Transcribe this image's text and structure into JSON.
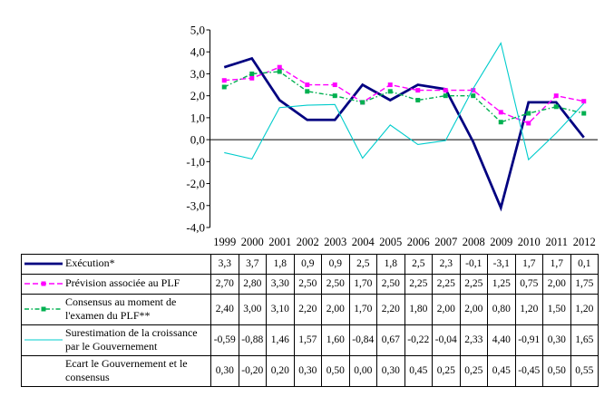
{
  "chart_data": {
    "type": "line",
    "title": "",
    "xlabel": "",
    "ylabel": "",
    "categories": [
      "1999",
      "2000",
      "2001",
      "2002",
      "2003",
      "2004",
      "2005",
      "2006",
      "2007",
      "2008",
      "2009",
      "2010",
      "2011",
      "2012"
    ],
    "ylim": [
      -4,
      5
    ],
    "ytick_step": 1,
    "ytick_labels": [
      "5,0",
      "4,0",
      "3,0",
      "2,0",
      "1,0",
      "0,0",
      "-1,0",
      "-2,0",
      "-3,0",
      "-4,0"
    ],
    "grid": false,
    "legend_position": "table-left",
    "series": [
      {
        "id": "execution",
        "name": "Exécution*",
        "values": [
          3.3,
          3.7,
          1.8,
          0.9,
          0.9,
          2.5,
          1.8,
          2.5,
          2.3,
          -0.1,
          -3.1,
          1.7,
          1.7,
          0.1
        ],
        "color": "#000080",
        "line": "solid",
        "width": 2.75,
        "marker": "none"
      },
      {
        "id": "prevision_plf",
        "name": "Prévision associée au PLF",
        "values": [
          2.7,
          2.8,
          3.3,
          2.5,
          2.5,
          1.7,
          2.5,
          2.25,
          2.25,
          2.25,
          1.25,
          0.75,
          2.0,
          1.75
        ],
        "color": "#FF00FF",
        "line": "dashed",
        "width": 1.4,
        "marker": "square"
      },
      {
        "id": "consensus",
        "name": "Consensus au moment de l'examen du PLF**",
        "values": [
          2.4,
          3.0,
          3.1,
          2.2,
          2.0,
          1.7,
          2.2,
          1.8,
          2.0,
          2.0,
          0.8,
          1.2,
          1.5,
          1.2
        ],
        "color": "#00B050",
        "line": "dashdot",
        "width": 1.4,
        "marker": "square"
      },
      {
        "id": "surestimation",
        "name": "Surestimation de la croissance par le Gouvernement",
        "values": [
          -0.59,
          -0.88,
          1.46,
          1.57,
          1.6,
          -0.84,
          0.67,
          -0.22,
          -0.04,
          2.33,
          4.4,
          -0.91,
          0.3,
          1.65
        ],
        "color": "#00CCCC",
        "line": "solid",
        "width": 1.1,
        "marker": "none"
      }
    ]
  },
  "table": {
    "rows": [
      {
        "label": "Exécution*",
        "series_index": 0,
        "values": [
          "3,3",
          "3,7",
          "1,8",
          "0,9",
          "0,9",
          "2,5",
          "1,8",
          "2,5",
          "2,3",
          "-0,1",
          "-3,1",
          "1,7",
          "1,7",
          "0,1"
        ]
      },
      {
        "label": "Prévision associée au PLF",
        "series_index": 1,
        "values": [
          "2,70",
          "2,80",
          "3,30",
          "2,50",
          "2,50",
          "1,70",
          "2,50",
          "2,25",
          "2,25",
          "2,25",
          "1,25",
          "0,75",
          "2,00",
          "1,75"
        ]
      },
      {
        "label": "Consensus au moment de\nl'examen du PLF**",
        "series_index": 2,
        "values": [
          "2,40",
          "3,00",
          "3,10",
          "2,20",
          "2,00",
          "1,70",
          "2,20",
          "1,80",
          "2,00",
          "2,00",
          "0,80",
          "1,20",
          "1,50",
          "1,20"
        ]
      },
      {
        "label": "Surestimation de la croissance\npar le Gouvernement",
        "series_index": 3,
        "values": [
          "-0,59",
          "-0,88",
          "1,46",
          "1,57",
          "1,60",
          "-0,84",
          "0,67",
          "-0,22",
          "-0,04",
          "2,33",
          "4,40",
          "-0,91",
          "0,30",
          "1,65"
        ]
      },
      {
        "label": "Ecart le Gouvernement et le\nconsensus",
        "series_index": null,
        "values": [
          "0,30",
          "-0,20",
          "0,20",
          "0,30",
          "0,50",
          "0,00",
          "0,30",
          "0,45",
          "0,25",
          "0,25",
          "0,45",
          "-0,45",
          "0,50",
          "0,55"
        ]
      }
    ]
  }
}
